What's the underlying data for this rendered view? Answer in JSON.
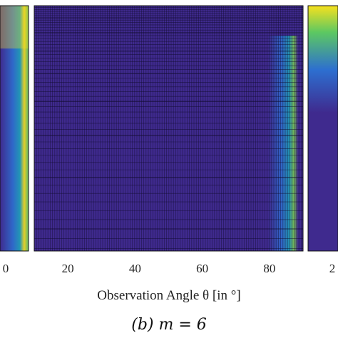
{
  "chart_data": {
    "type": "heatmap",
    "xlabel": "Observation Angle θ [in °]",
    "x_ticks": [
      20,
      40,
      60,
      80
    ],
    "xlim": [
      10,
      90
    ],
    "caption": "(b) m = 6",
    "left_panel_tick": "0",
    "right_panel_tick": "2",
    "colormap": "parula",
    "colors": {
      "background": "#3f2a8e",
      "grid": "#0f0a2a",
      "yellow": "#f7e11e",
      "green": "#5cc862",
      "cyan": "#1fa3b8",
      "blue": "#2d6fd0"
    },
    "hot_band_angle": 86
  }
}
